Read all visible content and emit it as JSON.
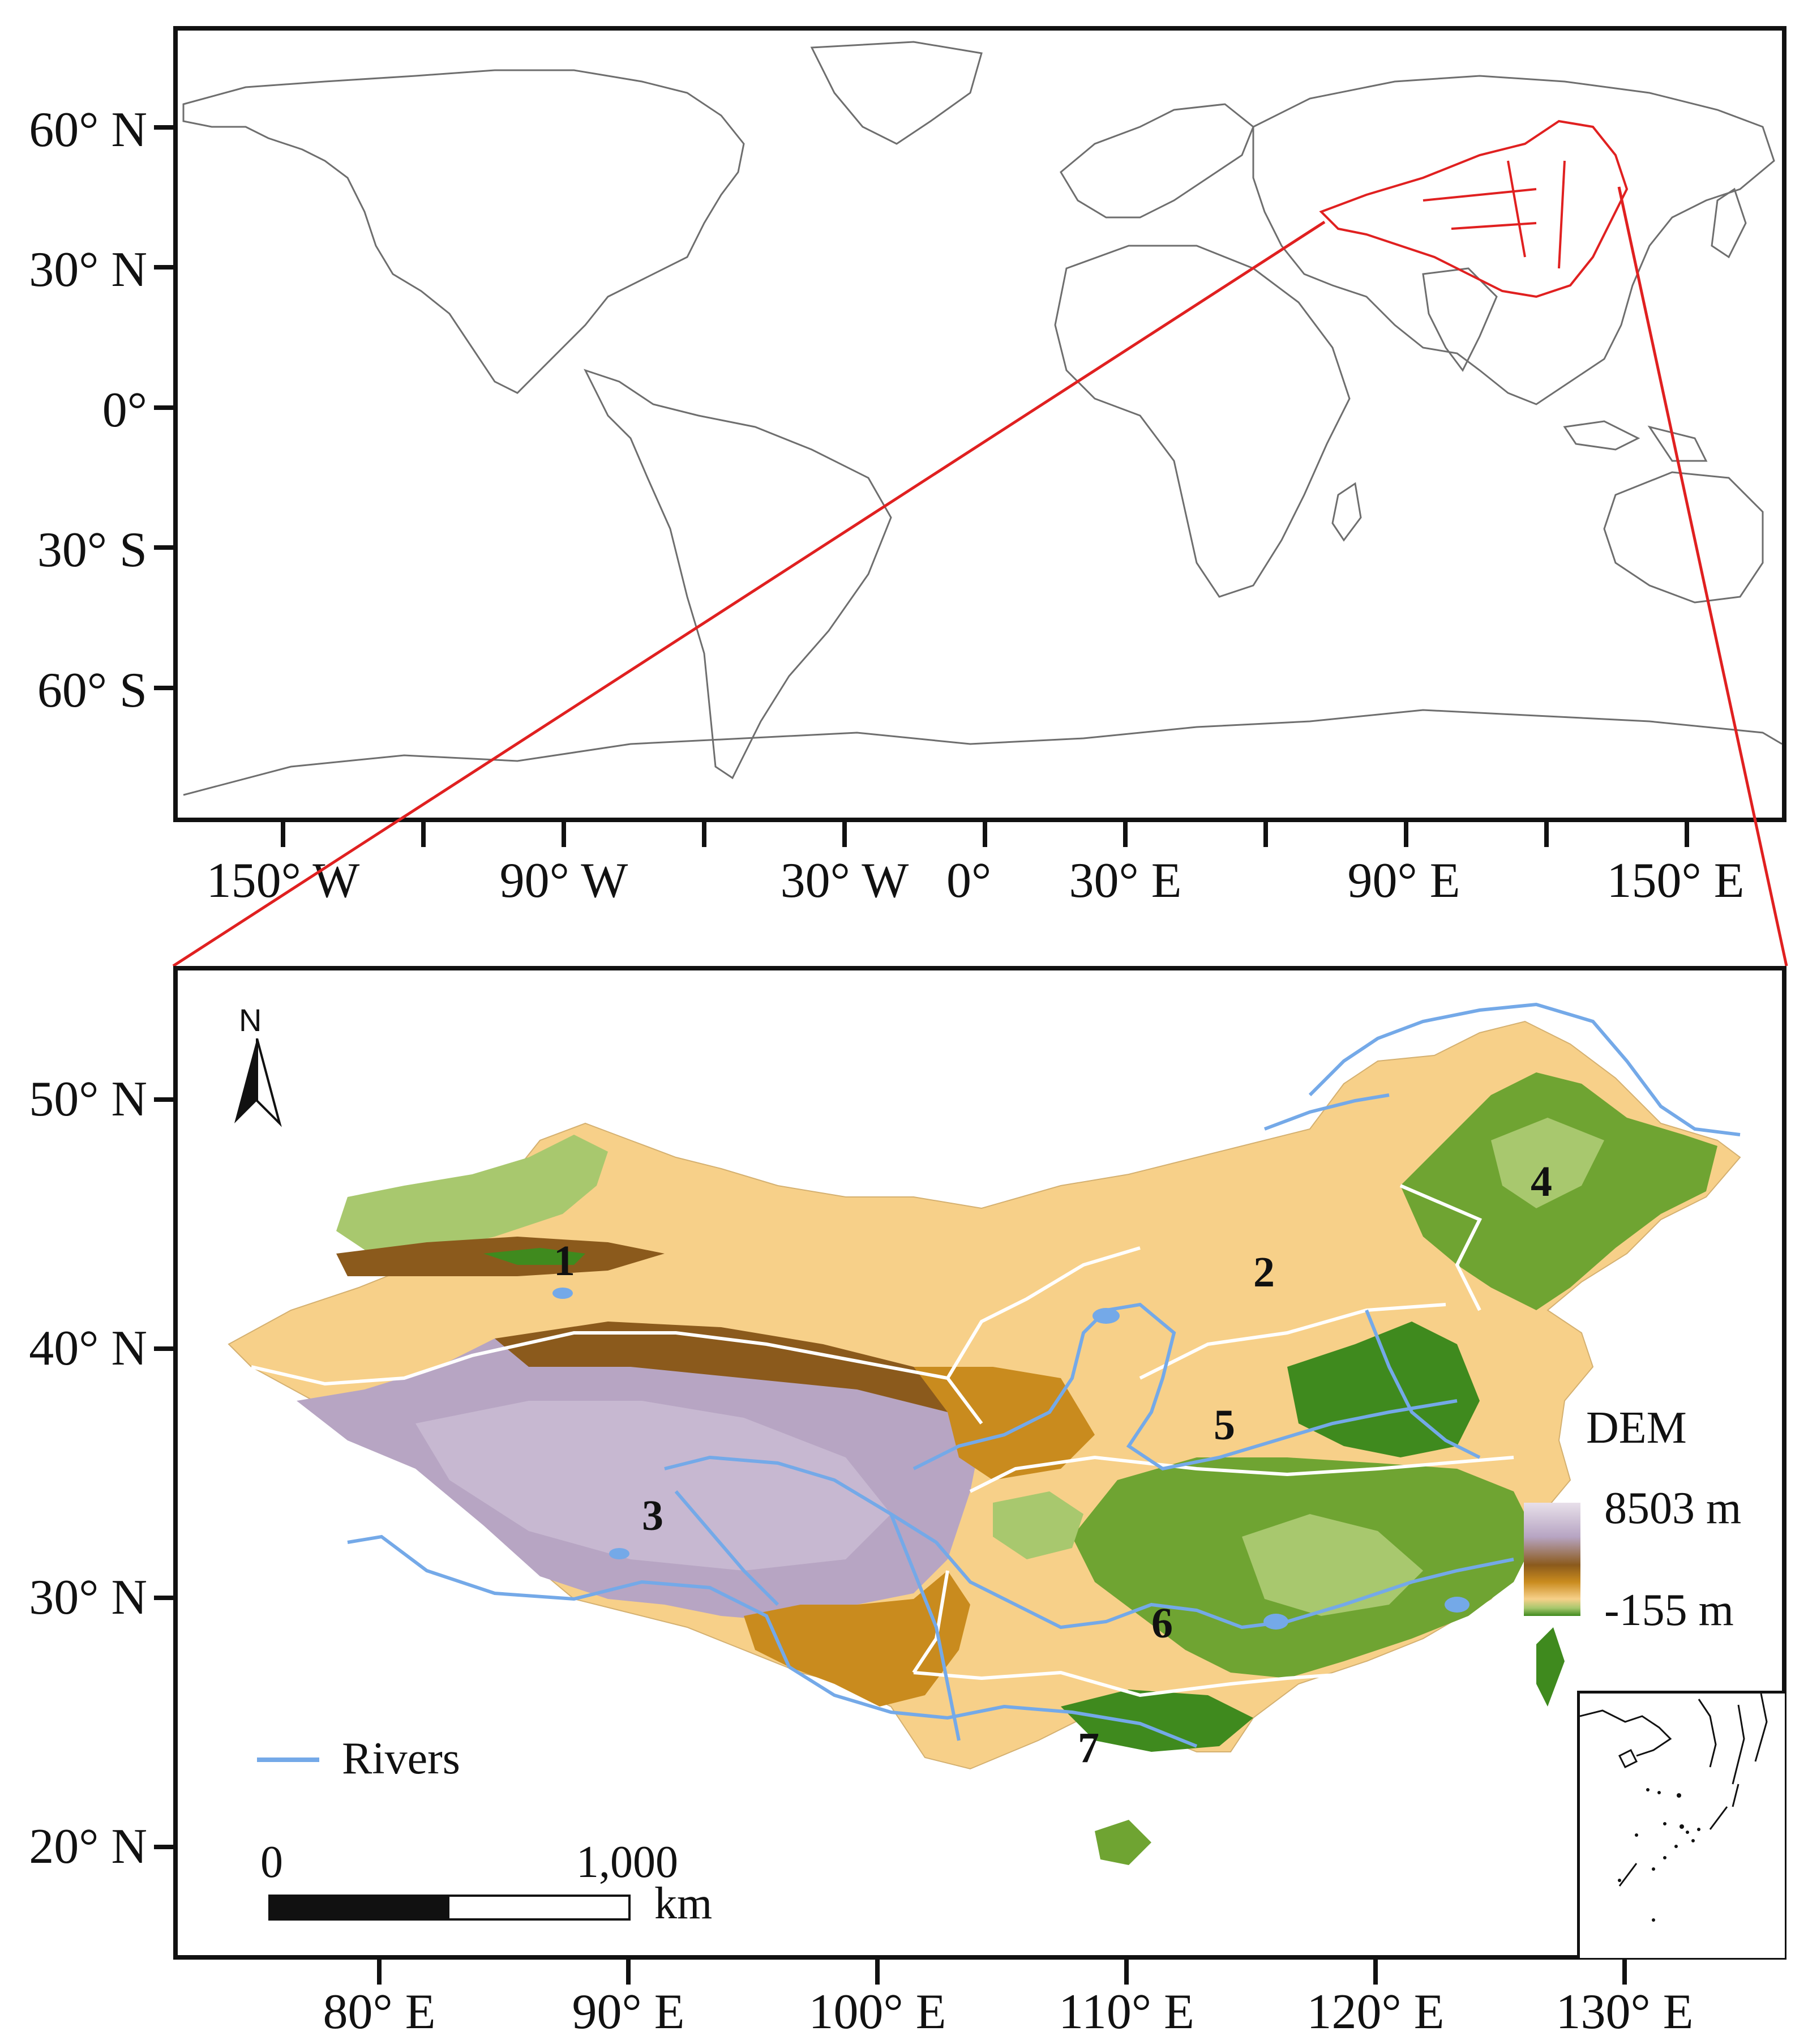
{
  "world_map": {
    "lat_labels": [
      "60° N",
      "30° N",
      "0°",
      "30° S",
      "60° S"
    ],
    "lon_labels": [
      "150° W",
      "90° W",
      "30° W",
      "0°",
      "30° E",
      "90° E",
      "150° E"
    ],
    "highlighted_country_color": "#e02020",
    "coastline_color": "#6e6e6e"
  },
  "china_map": {
    "lat_labels": [
      "50° N",
      "40° N",
      "30° N",
      "20° N"
    ],
    "lon_labels": [
      "80° E",
      "90° E",
      "100° E",
      "110° E",
      "120° E",
      "130° E"
    ],
    "north_arrow_label": "N",
    "regions": [
      "1",
      "2",
      "3",
      "4",
      "5",
      "6",
      "7"
    ],
    "legend": {
      "title": "DEM",
      "max_label": "8503 m",
      "min_label": "-155 m",
      "rivers_label": "Rivers",
      "river_color": "#74a9e8",
      "dem_colors": [
        "#b7a5c3",
        "#e8e0ea",
        "#8b5a1c",
        "#c98b1e",
        "#f7d089",
        "#a8c86e",
        "#3f8a1e"
      ]
    },
    "scale_bar": {
      "start_label": "0",
      "end_label": "1,000",
      "unit": "km"
    }
  }
}
